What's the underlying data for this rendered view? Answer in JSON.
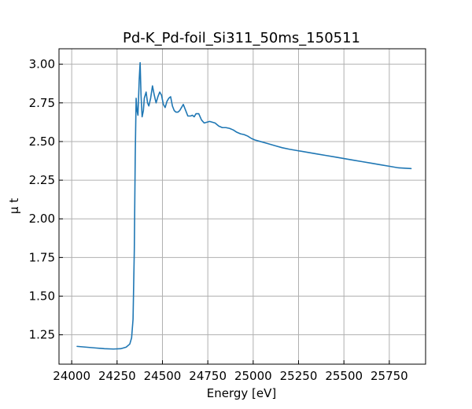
{
  "chart_data": {
    "type": "line",
    "title": "Pd-K_Pd-foil_Si311_50ms_150511",
    "xlabel": "Energy [eV]",
    "ylabel": "μ t",
    "xlim": [
      23930,
      25950
    ],
    "ylim": [
      1.06,
      3.1
    ],
    "xticks": [
      24000,
      24250,
      24500,
      24750,
      25000,
      25250,
      25500,
      25750
    ],
    "yticks": [
      1.25,
      1.5,
      1.75,
      2.0,
      2.25,
      2.5,
      2.75,
      3.0
    ],
    "ytick_labels": [
      "1.25",
      "1.50",
      "1.75",
      "2.00",
      "2.25",
      "2.50",
      "2.75",
      "3.00"
    ],
    "grid": true,
    "line_color": "#1f77b4",
    "series": [
      {
        "x": [
          24030,
          24080,
          24130,
          24180,
          24230,
          24270,
          24300,
          24320,
          24330,
          24338,
          24345,
          24350,
          24355,
          24360,
          24365,
          24372,
          24377,
          24382,
          24388,
          24395,
          24400,
          24405,
          24410,
          24418,
          24425,
          24435,
          24445,
          24455,
          24465,
          24475,
          24485,
          24495,
          24505,
          24515,
          24525,
          24535,
          24545,
          24555,
          24565,
          24575,
          24585,
          24595,
          24605,
          24615,
          24625,
          24640,
          24655,
          24665,
          24675,
          24685,
          24700,
          24715,
          24730,
          24745,
          24760,
          24775,
          24790,
          24810,
          24830,
          24850,
          24870,
          24890,
          24910,
          24930,
          24950,
          24970,
          24990,
          25010,
          25040,
          25070,
          25100,
          25130,
          25160,
          25200,
          25250,
          25300,
          25350,
          25400,
          25450,
          25500,
          25550,
          25600,
          25650,
          25700,
          25750,
          25800,
          25870
        ],
        "y": [
          1.175,
          1.17,
          1.165,
          1.16,
          1.158,
          1.16,
          1.17,
          1.19,
          1.23,
          1.35,
          1.8,
          2.4,
          2.78,
          2.7,
          2.67,
          2.9,
          3.01,
          2.8,
          2.66,
          2.7,
          2.78,
          2.8,
          2.82,
          2.75,
          2.73,
          2.78,
          2.86,
          2.8,
          2.75,
          2.79,
          2.82,
          2.8,
          2.74,
          2.72,
          2.76,
          2.78,
          2.79,
          2.73,
          2.7,
          2.69,
          2.69,
          2.7,
          2.72,
          2.74,
          2.71,
          2.665,
          2.665,
          2.67,
          2.66,
          2.68,
          2.68,
          2.64,
          2.62,
          2.625,
          2.63,
          2.625,
          2.62,
          2.6,
          2.59,
          2.59,
          2.585,
          2.575,
          2.56,
          2.55,
          2.545,
          2.535,
          2.52,
          2.51,
          2.5,
          2.49,
          2.48,
          2.47,
          2.46,
          2.45,
          2.44,
          2.43,
          2.42,
          2.41,
          2.4,
          2.39,
          2.38,
          2.37,
          2.36,
          2.35,
          2.34,
          2.33,
          2.325
        ]
      }
    ]
  }
}
